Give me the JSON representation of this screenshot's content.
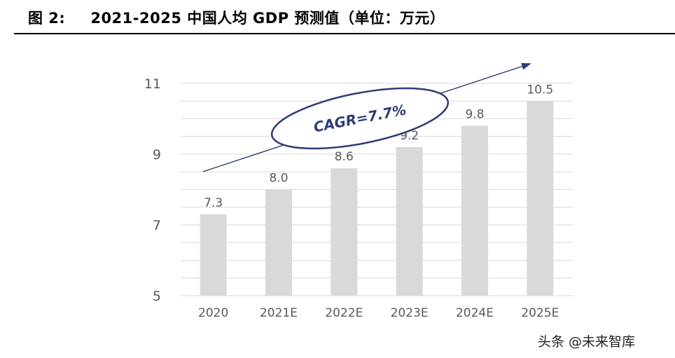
{
  "header": {
    "figure_label": "图 2:",
    "title": "2021-2025 中国人均 GDP 预测值（单位：万元）"
  },
  "watermark": "头条 @未来智库",
  "chart_data": {
    "type": "bar",
    "title": "2021-2025 中国人均 GDP 预测值（单位：万元）",
    "categories": [
      "2020",
      "2021E",
      "2022E",
      "2023E",
      "2024E",
      "2025E"
    ],
    "values": [
      7.3,
      8.0,
      8.6,
      9.2,
      9.8,
      10.5
    ],
    "data_labels": [
      "7.3",
      "8.0",
      "8.6",
      "9.2",
      "9.8",
      "10.5"
    ],
    "ylim": [
      5,
      11
    ],
    "yticks": [
      5,
      7,
      9,
      11
    ],
    "grid": true,
    "annotation": "CAGR=7.7%",
    "colors": {
      "bar": "#d9d9d9",
      "grid": "#d9d9d9",
      "axis_text": "#595959",
      "annotation": "#2f3b73"
    }
  }
}
